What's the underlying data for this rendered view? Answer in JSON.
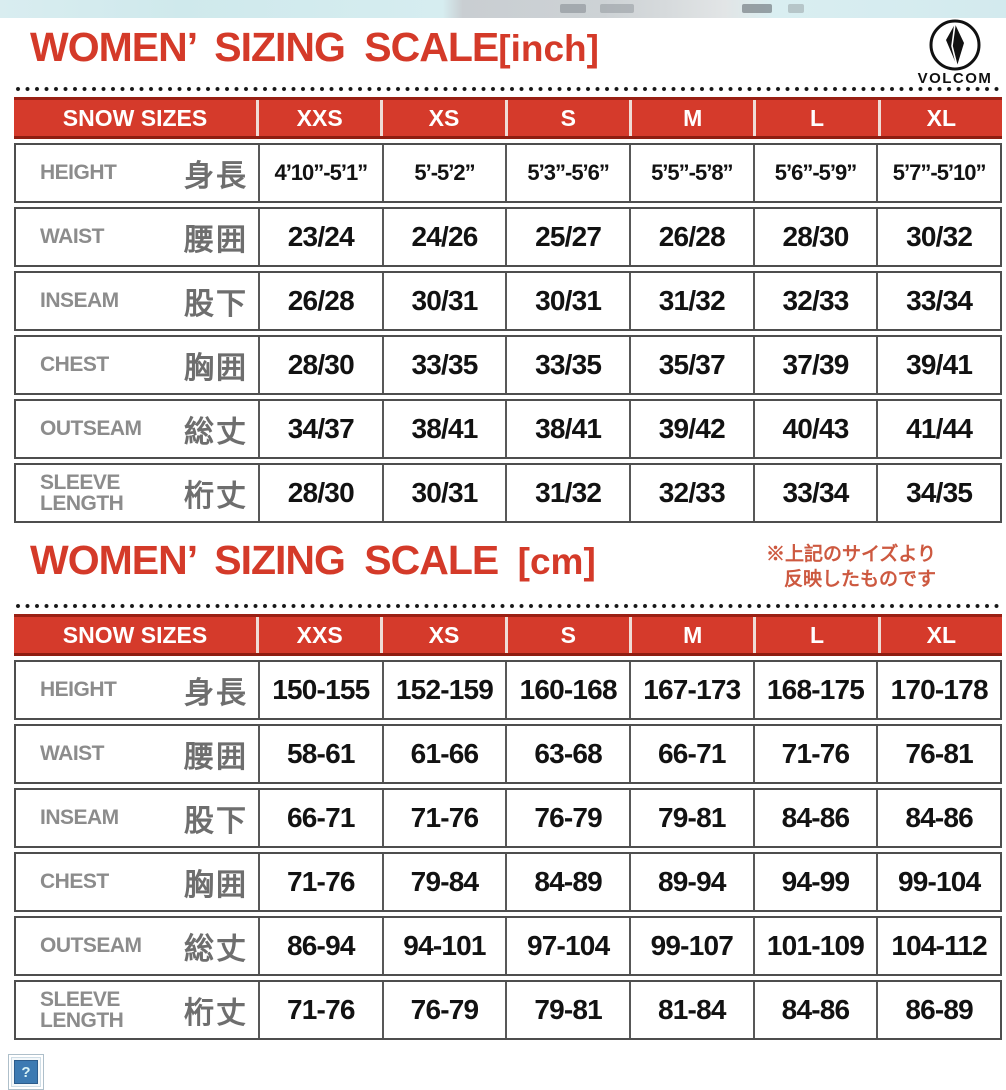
{
  "logo": {
    "brand": "VOLCOM"
  },
  "broken_image": {
    "glyph": "?"
  },
  "sections": [
    {
      "title": "WOMEN’ SIZING SCALE",
      "unit": "[inch]",
      "table": {
        "header": [
          "SNOW SIZES",
          "XXS",
          "XS",
          "S",
          "M",
          "L",
          "XL"
        ],
        "rows": [
          {
            "label_en": "HEIGHT",
            "label_ja": "身長",
            "values": [
              "4’10”-5’1”",
              "5’-5’2”",
              "5’3”-5’6”",
              "5’5”-5’8”",
              "5’6”-5’9”",
              "5’7”-5’10”"
            ]
          },
          {
            "label_en": "WAIST",
            "label_ja": "腰囲",
            "values": [
              "23/24",
              "24/26",
              "25/27",
              "26/28",
              "28/30",
              "30/32"
            ]
          },
          {
            "label_en": "INSEAM",
            "label_ja": "股下",
            "values": [
              "26/28",
              "30/31",
              "30/31",
              "31/32",
              "32/33",
              "33/34"
            ]
          },
          {
            "label_en": "CHEST",
            "label_ja": "胸囲",
            "values": [
              "28/30",
              "33/35",
              "33/35",
              "35/37",
              "37/39",
              "39/41"
            ]
          },
          {
            "label_en": "OUTSEAM",
            "label_ja": "総丈",
            "values": [
              "34/37",
              "38/41",
              "38/41",
              "39/42",
              "40/43",
              "41/44"
            ]
          },
          {
            "label_en": "SLEEVE LENGTH",
            "label_ja": "桁丈",
            "values": [
              "28/30",
              "30/31",
              "31/32",
              "32/33",
              "33/34",
              "34/35"
            ]
          }
        ]
      }
    },
    {
      "title": "WOMEN’ SIZING SCALE",
      "unit": "[cm]",
      "note_line1": "※上記のサイズより",
      "note_line2": "反映したものです",
      "table": {
        "header": [
          "SNOW SIZES",
          "XXS",
          "XS",
          "S",
          "M",
          "L",
          "XL"
        ],
        "rows": [
          {
            "label_en": "HEIGHT",
            "label_ja": "身長",
            "values": [
              "150-155",
              "152-159",
              "160-168",
              "167-173",
              "168-175",
              "170-178"
            ]
          },
          {
            "label_en": "WAIST",
            "label_ja": "腰囲",
            "values": [
              "58-61",
              "61-66",
              "63-68",
              "66-71",
              "71-76",
              "76-81"
            ]
          },
          {
            "label_en": "INSEAM",
            "label_ja": "股下",
            "values": [
              "66-71",
              "71-76",
              "76-79",
              "79-81",
              "84-86",
              "84-86"
            ]
          },
          {
            "label_en": "CHEST",
            "label_ja": "胸囲",
            "values": [
              "71-76",
              "79-84",
              "84-89",
              "89-94",
              "94-99",
              "99-104"
            ]
          },
          {
            "label_en": "OUTSEAM",
            "label_ja": "総丈",
            "values": [
              "86-94",
              "94-101",
              "97-104",
              "99-107",
              "101-109",
              "104-112"
            ]
          },
          {
            "label_en": "SLEEVE LENGTH",
            "label_ja": "桁丈",
            "values": [
              "71-76",
              "76-79",
              "79-81",
              "81-84",
              "84-86",
              "86-89"
            ]
          }
        ]
      }
    }
  ],
  "chart_data": [
    {
      "type": "table",
      "title": "WOMEN’ SIZING SCALE [inch]",
      "columns": [
        "SNOW SIZES",
        "XXS",
        "XS",
        "S",
        "M",
        "L",
        "XL"
      ],
      "rows": [
        [
          "HEIGHT 身長",
          "4’10”-5’1”",
          "5’-5’2”",
          "5’3”-5’6”",
          "5’5”-5’8”",
          "5’6”-5’9”",
          "5’7”-5’10”"
        ],
        [
          "WAIST 腰囲",
          "23/24",
          "24/26",
          "25/27",
          "26/28",
          "28/30",
          "30/32"
        ],
        [
          "INSEAM 股下",
          "26/28",
          "30/31",
          "30/31",
          "31/32",
          "32/33",
          "33/34"
        ],
        [
          "CHEST 胸囲",
          "28/30",
          "33/35",
          "33/35",
          "35/37",
          "37/39",
          "39/41"
        ],
        [
          "OUTSEAM 総丈",
          "34/37",
          "38/41",
          "38/41",
          "39/42",
          "40/43",
          "41/44"
        ],
        [
          "SLEEVE LENGTH 桁丈",
          "28/30",
          "30/31",
          "31/32",
          "32/33",
          "33/34",
          "34/35"
        ]
      ]
    },
    {
      "type": "table",
      "title": "WOMEN’ SIZING SCALE [cm]",
      "annotation": "※上記のサイズより反映したものです",
      "columns": [
        "SNOW SIZES",
        "XXS",
        "XS",
        "S",
        "M",
        "L",
        "XL"
      ],
      "rows": [
        [
          "HEIGHT 身長",
          "150-155",
          "152-159",
          "160-168",
          "167-173",
          "168-175",
          "170-178"
        ],
        [
          "WAIST 腰囲",
          "58-61",
          "61-66",
          "63-68",
          "66-71",
          "71-76",
          "76-81"
        ],
        [
          "INSEAM 股下",
          "66-71",
          "71-76",
          "76-79",
          "79-81",
          "84-86",
          "84-86"
        ],
        [
          "CHEST 胸囲",
          "71-76",
          "79-84",
          "84-89",
          "89-94",
          "94-99",
          "99-104"
        ],
        [
          "OUTSEAM 総丈",
          "86-94",
          "94-101",
          "97-104",
          "99-107",
          "101-109",
          "104-112"
        ],
        [
          "SLEEVE LENGTH 桁丈",
          "71-76",
          "76-79",
          "79-81",
          "81-84",
          "84-86",
          "86-89"
        ]
      ]
    }
  ],
  "colors": {
    "accent_red": "#d43a29",
    "header_red": "#d53a2b",
    "header_border_red": "#9a2014",
    "note_red": "#cd5940",
    "label_gray": "#8c8c8c",
    "border_gray": "#4e4e4e",
    "broken_icon_blue": "#3c7ab2"
  }
}
